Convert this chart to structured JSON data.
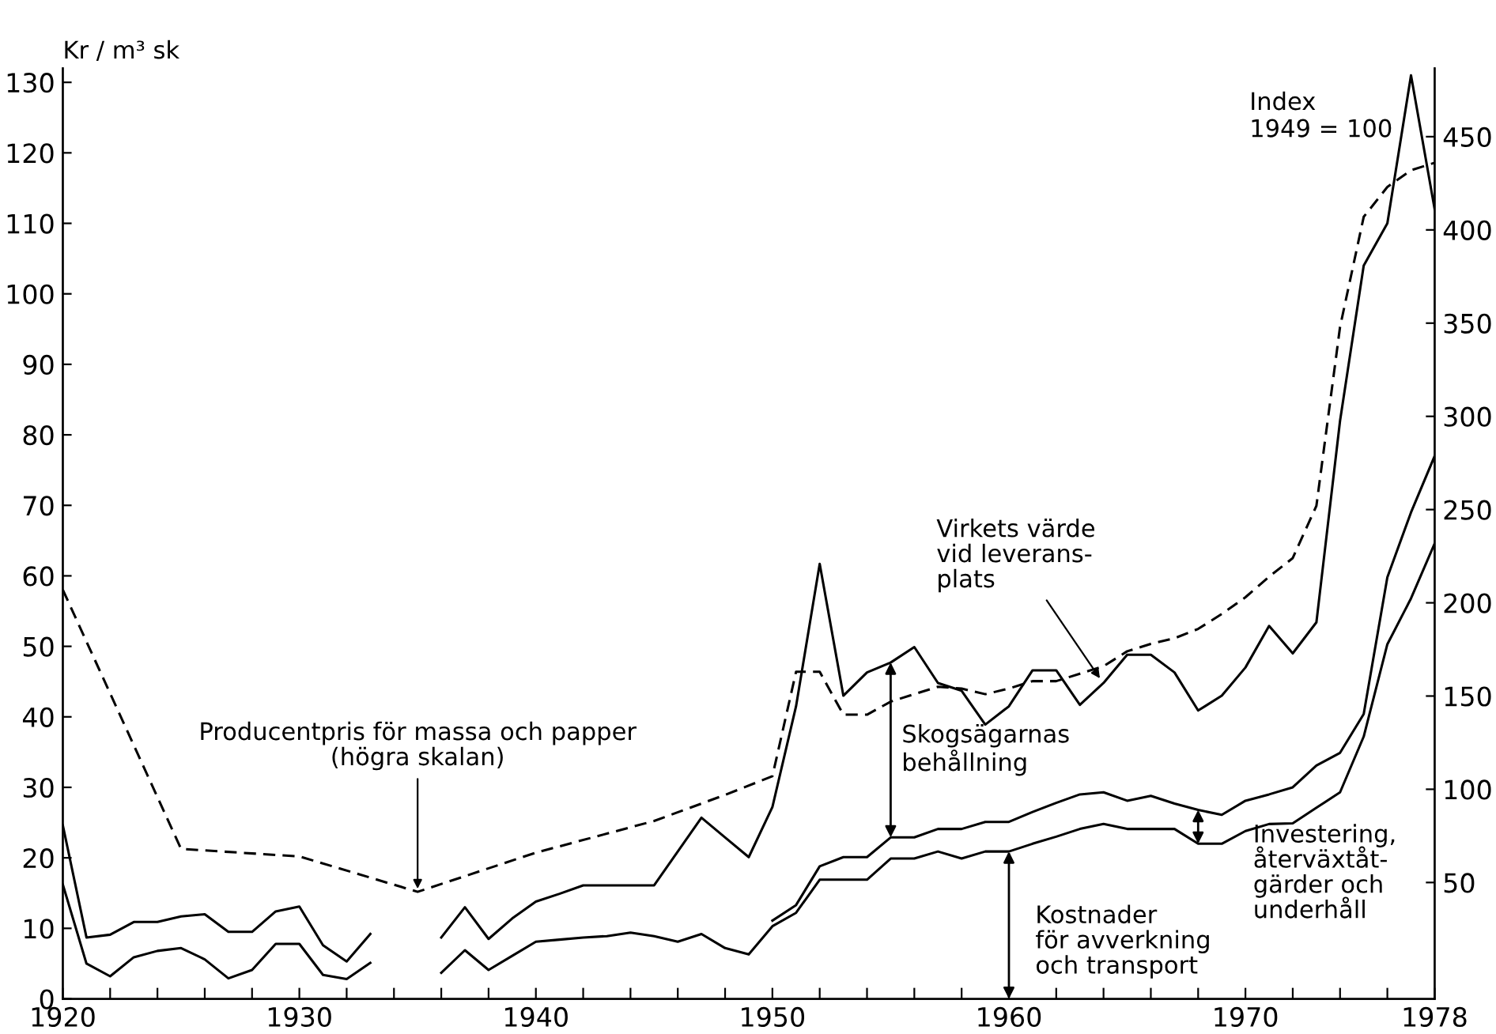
{
  "chart_data": {
    "type": "line",
    "ylabel": "Kr / m³ sk",
    "y2label": "Index\n1949 = 100",
    "xlim": [
      1920,
      1978
    ],
    "xticks": [
      1920,
      {
        "value": 1922,
        "label": null
      },
      {
        "value": 1924,
        "label": null
      },
      {
        "value": 1926,
        "label": null
      },
      {
        "value": 1928,
        "label": null
      },
      1930,
      {
        "value": 1932,
        "label": null
      },
      {
        "value": 1934,
        "label": null
      },
      {
        "value": 1936,
        "label": null
      },
      {
        "value": 1938,
        "label": null
      },
      1940,
      {
        "value": 1942,
        "label": null
      },
      {
        "value": 1944,
        "label": null
      },
      {
        "value": 1946,
        "label": null
      },
      {
        "value": 1948,
        "label": null
      },
      1950,
      {
        "value": 1952,
        "label": null
      },
      {
        "value": 1954,
        "label": null
      },
      {
        "value": 1956,
        "label": null
      },
      {
        "value": 1958,
        "label": null
      },
      1960,
      {
        "value": 1962,
        "label": null
      },
      {
        "value": 1964,
        "label": null
      },
      {
        "value": 1966,
        "label": null
      },
      {
        "value": 1968,
        "label": null
      },
      1970,
      {
        "value": 1972,
        "label": null
      },
      {
        "value": 1974,
        "label": null
      },
      {
        "value": 1976,
        "label": null
      },
      1978
    ],
    "ylim": [
      0,
      132
    ],
    "yticks": [
      0,
      10,
      20,
      30,
      40,
      50,
      60,
      70,
      80,
      90,
      100,
      110,
      120,
      130
    ],
    "y2lim": [
      -12.4,
      486.7
    ],
    "y2ticks": [
      50,
      100,
      150,
      200,
      250,
      300,
      350,
      400,
      450
    ],
    "grid": false,
    "legend": false,
    "marker": "none",
    "series": [
      {
        "color": "#000000",
        "line_style": "solid",
        "x": [
          1920,
          1921,
          1922,
          1923,
          1924,
          1925,
          1926,
          1927,
          1928,
          1929,
          1930,
          1931,
          1932,
          1933,
          1934,
          1935,
          1936,
          1937,
          1938,
          1939,
          1940,
          1941,
          1942,
          1943,
          1944,
          1945,
          1947,
          1948,
          1949,
          1950,
          1951,
          1952,
          1953,
          1954,
          1955,
          1956,
          1957,
          1958,
          1959,
          1960,
          1961,
          1962,
          1963,
          1964,
          1965,
          1966,
          1967,
          1968,
          1969,
          1970,
          1971,
          1972,
          1973,
          1974,
          1975,
          1976,
          1977,
          1978
        ],
        "values": [
          24.6,
          8.7,
          9.1,
          10.9,
          10.9,
          11.7,
          12.0,
          9.5,
          9.5,
          12.4,
          13.1,
          7.6,
          5.3,
          9.2,
          null,
          null,
          8.7,
          13.0,
          8.5,
          11.4,
          13.8,
          14.9,
          16.1,
          16.1,
          16.1,
          16.1,
          25.7,
          22.9,
          20.1,
          27.2,
          41.5,
          61.7,
          43.0,
          46.3,
          47.7,
          49.9,
          44.8,
          43.7,
          38.9,
          41.5,
          46.6,
          46.6,
          41.7,
          44.8,
          48.8,
          48.8,
          46.3,
          40.9,
          43.0,
          47.0,
          52.9,
          49.0,
          53.4,
          82,
          104,
          110,
          131,
          112
        ]
      },
      {
        "color": "#000000",
        "line_style": "solid",
        "x": [
          1950,
          1951,
          1952,
          1953,
          1954,
          1955,
          1956,
          1957,
          1958,
          1959,
          1960,
          1961,
          1962,
          1963,
          1964,
          1965,
          1966,
          1967,
          1968,
          1969,
          1970,
          1971,
          1972,
          1973,
          1974,
          1975,
          1976,
          1977,
          1978
        ],
        "values": [
          11.1,
          13.3,
          18.8,
          20.1,
          20.1,
          22.9,
          22.9,
          24.1,
          24.1,
          25.1,
          25.1,
          26.5,
          27.8,
          29.0,
          29.3,
          28.1,
          28.8,
          27.7,
          26.8,
          26.1,
          28.1,
          29.0,
          30.0,
          33.1,
          34.9,
          40.4,
          59.8,
          69,
          77
        ]
      },
      {
        "color": "#000000",
        "line_style": "solid",
        "x": [
          1920,
          1921,
          1922,
          1923,
          1924,
          1925,
          1926,
          1927,
          1928,
          1929,
          1930,
          1931,
          1932,
          1933,
          1934,
          1935,
          1936,
          1937,
          1938,
          1939,
          1940,
          1941,
          1942,
          1943,
          1944,
          1945,
          1946,
          1947,
          1948,
          1949,
          1950,
          1951,
          1952,
          1953,
          1954,
          1955,
          1956,
          1957,
          1958,
          1959,
          1960,
          1961,
          1962,
          1963,
          1964,
          1965,
          1966,
          1967,
          1968,
          1969,
          1970,
          1971,
          1972,
          1973,
          1974,
          1975,
          1976,
          1977,
          1978
        ],
        "values": [
          16.2,
          5.0,
          3.2,
          5.9,
          6.8,
          7.2,
          5.6,
          2.9,
          4.1,
          7.8,
          7.8,
          3.4,
          2.8,
          5.1,
          null,
          null,
          3.7,
          6.9,
          4.1,
          6.1,
          8.1,
          8.4,
          8.7,
          8.9,
          9.4,
          8.9,
          8.1,
          9.2,
          7.2,
          6.3,
          10.3,
          12.2,
          16.9,
          16.9,
          16.9,
          19.9,
          19.9,
          20.9,
          19.9,
          20.9,
          20.9,
          22.0,
          23.0,
          24.1,
          24.8,
          24.1,
          24.1,
          24.1,
          22.0,
          22.0,
          23.8,
          24.8,
          24.9,
          27.1,
          29.3,
          37.2,
          50.3,
          56.8,
          64.6
        ]
      },
      {
        "color": "#000000",
        "line_style": "dashed",
        "axis": "y2",
        "x": [
          1920,
          1925,
          1930,
          1935,
          1940,
          1945,
          1948,
          1950,
          1951,
          1952,
          1953,
          1954,
          1955,
          1956,
          1957,
          1958,
          1959,
          1960,
          1961,
          1962,
          1963,
          1964,
          1965,
          1966,
          1967,
          1968,
          1969,
          1970,
          1971,
          1972,
          1973,
          1974,
          1975,
          1976,
          1977,
          1978
        ],
        "values": [
          207,
          68,
          64,
          45,
          66,
          83,
          97,
          107,
          163,
          163,
          140,
          140,
          147,
          151,
          155,
          154,
          151,
          154,
          158,
          158,
          162,
          166,
          174,
          178,
          181,
          186,
          194,
          203,
          214,
          224,
          252,
          348,
          407,
          423,
          432,
          436
        ]
      }
    ],
    "annotations": [
      {
        "text": "Producentpris för massa och papper\n(högra skalan)",
        "x": 1935,
        "y": 15.3
      },
      {
        "text": "Virkets värde\nvid leverans-\nplats",
        "x": 1963.9,
        "y": 45.2
      },
      {
        "text": "Skogsägarnas\nbehållning",
        "x": 1955,
        "y": 47.7
      },
      {
        "text": "Kostnader\nför avverkning\noch transport",
        "x": 1960,
        "y": 20.9
      },
      {
        "text": "Investering,\nåterväxtåt-\ngärder och\nunderhåll",
        "x": 1968,
        "y": 26.8
      }
    ]
  }
}
